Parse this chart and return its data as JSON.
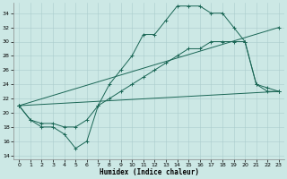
{
  "xlabel": "Humidex (Indice chaleur)",
  "bg_color": "#cce8e5",
  "grid_color": "#aacccc",
  "line_color": "#1a6655",
  "xlim": [
    -0.5,
    23.5
  ],
  "ylim": [
    13.5,
    35.5
  ],
  "ytick_vals": [
    14,
    16,
    18,
    20,
    22,
    24,
    26,
    28,
    30,
    32,
    34
  ],
  "xtick_vals": [
    0,
    1,
    2,
    3,
    4,
    5,
    6,
    7,
    8,
    9,
    10,
    11,
    12,
    13,
    14,
    15,
    16,
    17,
    18,
    19,
    20,
    21,
    22,
    23
  ],
  "line1_x": [
    0,
    1,
    2,
    3,
    4,
    5,
    6,
    7,
    8,
    9,
    10,
    11,
    12,
    13,
    14,
    15,
    16,
    17,
    18,
    19,
    20,
    21,
    22,
    23
  ],
  "line1_y": [
    21,
    19,
    18,
    18,
    17,
    15,
    16,
    21,
    24,
    26,
    28,
    31,
    31,
    33,
    35,
    35,
    35,
    34,
    34,
    32,
    30,
    24,
    23,
    23
  ],
  "line2_x": [
    0,
    1,
    2,
    3,
    4,
    5,
    6,
    7,
    8,
    9,
    10,
    11,
    12,
    13,
    14,
    15,
    16,
    17,
    18,
    19,
    20,
    21,
    22,
    23
  ],
  "line2_y": [
    21,
    19,
    18.5,
    18.5,
    18,
    18,
    19,
    21,
    22,
    23,
    24,
    25,
    26,
    27,
    28,
    29,
    29,
    30,
    30,
    30,
    30,
    24,
    23.5,
    23
  ],
  "line3_x": [
    0,
    23
  ],
  "line3_y": [
    21,
    32
  ],
  "line4_x": [
    0,
    23
  ],
  "line4_y": [
    21,
    23
  ]
}
